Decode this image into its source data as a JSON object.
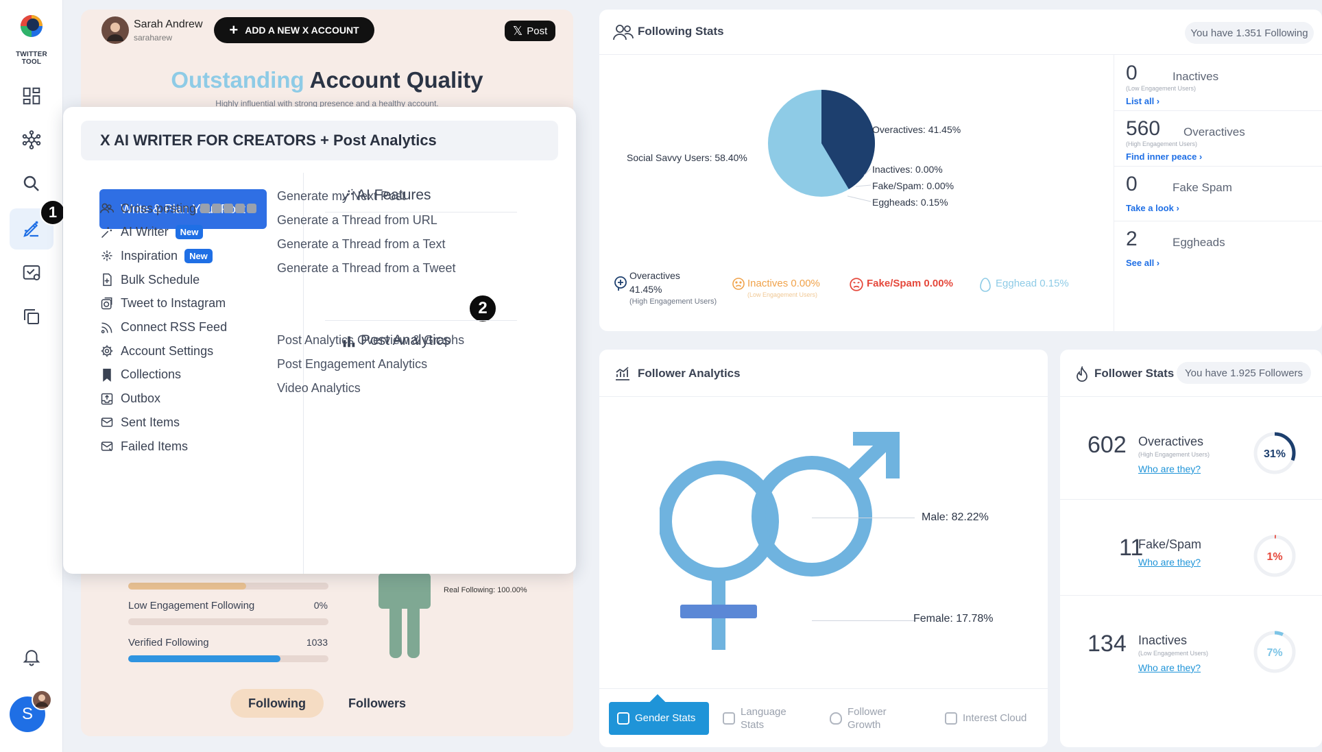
{
  "sidebar": {
    "logo_text": "TWITTER TOOL",
    "active_badge": "1",
    "avatar_letter": "S"
  },
  "account": {
    "name": "Sarah Andrew",
    "handle": "saraharew",
    "add_account_label": "ADD A NEW X ACCOUNT",
    "post_label": "Post"
  },
  "quality": {
    "title_highlight": "Outstanding",
    "title_rest": "Account Quality",
    "subtitle": "Highly influential with strong presence and a healthy account."
  },
  "popup": {
    "title": "X AI WRITER FOR CREATORS + Post Analytics",
    "primary_button": "Write & Plan Your Post",
    "menu": [
      {
        "label": "Cross posting",
        "icon": "users-icon"
      },
      {
        "label": "AI Writer",
        "icon": "magic-wand-icon",
        "badge": "New"
      },
      {
        "label": "Inspiration",
        "icon": "sparkle-icon",
        "badge": "New"
      },
      {
        "label": "Bulk Schedule",
        "icon": "file-plus-icon"
      },
      {
        "label": "Tweet to Instagram",
        "icon": "instagram-icon"
      },
      {
        "label": "Connect RSS Feed",
        "icon": "rss-icon"
      },
      {
        "label": "Account Settings",
        "icon": "gear-icon"
      },
      {
        "label": "Collections",
        "icon": "bookmark-icon"
      },
      {
        "label": "Outbox",
        "icon": "outbox-icon"
      },
      {
        "label": "Sent Items",
        "icon": "sent-icon"
      },
      {
        "label": "Failed Items",
        "icon": "failed-icon"
      }
    ],
    "ai_features_title": "AI Features",
    "ai_features": [
      "Generate my Next Post",
      "Generate a Thread from URL",
      "Generate a Thread from a Text",
      "Generate a Thread from a Tweet"
    ],
    "post_analytics_title": "Post Analytics",
    "post_analytics_badge": "2",
    "post_analytics": [
      "Post Analytics Overview & Graphs",
      "Post Engagement Analytics",
      "Video Analytics"
    ]
  },
  "left_stats": {
    "low_engagement_label": "Low Engagement Following",
    "low_engagement_value": "0%",
    "low_engagement_fill": 0.0,
    "top_fill": 0.59,
    "verified_label": "Verified Following",
    "verified_value": "1033",
    "verified_fill": 0.76,
    "real_following_label": "Real Following: 100.00%",
    "tab_following": "Following",
    "tab_followers": "Followers"
  },
  "following_stats": {
    "title": "Following Stats",
    "count_label": "You have 1.351 Following",
    "chart_data": {
      "type": "pie",
      "series": [
        {
          "name": "Overactives",
          "label": "Overactives: 41.45%",
          "value": 41.45,
          "color": "#1d3f6e"
        },
        {
          "name": "Social Savvy Users",
          "label": "Social Savvy Users: 58.40%",
          "value": 58.4,
          "color": "#8ecbe6"
        },
        {
          "name": "Inactives",
          "label": "Inactives: 0.00%",
          "value": 0.0,
          "color": "#8ecbe6"
        },
        {
          "name": "Fake/Spam",
          "label": "Fake/Spam: 0.00%",
          "value": 0.0,
          "color": "#8ecbe6"
        },
        {
          "name": "Eggheads",
          "label": "Eggheads: 0.15%",
          "value": 0.15,
          "color": "#8ecbe6"
        }
      ]
    },
    "legend": {
      "overactives": "Overactives",
      "overactives_pct": "41.45%",
      "overactives_sub": "(High Engagement Users)",
      "inactives": "Inactives 0.00%",
      "inactives_sub": "(Low Engagement Users)",
      "fakespam": "Fake/Spam 0.00%",
      "egghead": "Egghead 0.15%"
    },
    "side": [
      {
        "num": "0",
        "label": "Inactives",
        "sub": "(Low Engagement Users)",
        "link": "List all ›"
      },
      {
        "num": "560",
        "label": "Overactives",
        "sub": "(High Engagement Users)",
        "link": "Find inner peace ›"
      },
      {
        "num": "0",
        "label": "Fake Spam",
        "sub": "",
        "link": "Take a look ›"
      },
      {
        "num": "2",
        "label": "Eggheads",
        "sub": "",
        "link": "See all ›"
      }
    ]
  },
  "follower_analytics": {
    "title": "Follower Analytics",
    "chart_data": {
      "type": "pie",
      "series": [
        {
          "name": "Male",
          "label": "Male: 82.22%",
          "value": 82.22
        },
        {
          "name": "Female",
          "label": "Female: 17.78%",
          "value": 17.78
        }
      ]
    },
    "tabs": [
      {
        "label": "Gender Stats",
        "icon": "gender-icon",
        "active": true
      },
      {
        "label": "Language\nStats",
        "icon": "language-icon",
        "active": false
      },
      {
        "label": "Follower\nGrowth",
        "icon": "flame-icon",
        "active": false
      },
      {
        "label": "Interest Cloud",
        "icon": "cloud-icon",
        "active": false
      }
    ]
  },
  "follower_stats": {
    "title": "Follower Stats",
    "count_label": "You have 1.925 Followers",
    "items": [
      {
        "num": "602",
        "label": "Overactives",
        "sub": "(High Engagement Users)",
        "link": "Who are they?",
        "pct_label": "31%",
        "pct": 31,
        "color": "#1d3f6e"
      },
      {
        "num": "11",
        "label": "Fake/Spam",
        "sub": "",
        "link": "Who are they?",
        "pct_label": "1%",
        "pct": 1,
        "color": "#e5483b"
      },
      {
        "num": "134",
        "label": "Inactives",
        "sub": "(Low Engagement Users)",
        "link": "Who are they?",
        "pct_label": "7%",
        "pct": 7,
        "color": "#7cc4e6"
      }
    ]
  }
}
